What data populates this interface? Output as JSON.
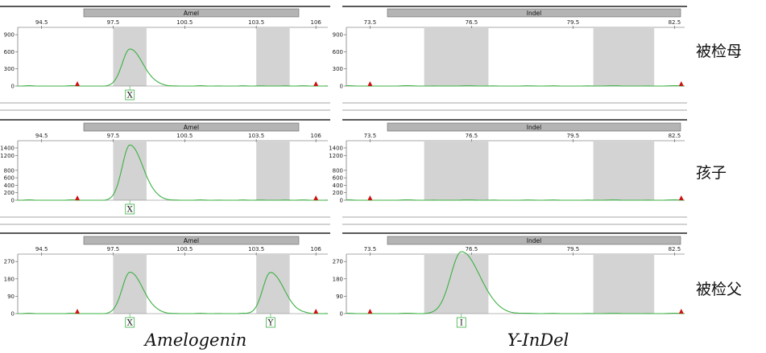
{
  "row_labels": [
    "被检母",
    "孩子",
    "被检父"
  ],
  "captions": [
    "Amelogenin",
    "Y-InDel"
  ],
  "colors": {
    "trace": "#3cb043",
    "bin": "#d3d3d3",
    "marker_bar": "#b4b4b4",
    "peak_marker": "#cc1111"
  },
  "chart_data": [
    {
      "type": "line",
      "panel": "Amelogenin / 被检母",
      "title": "Amel",
      "xlim": [
        93.5,
        106.5
      ],
      "x_ticks": [
        "94.5",
        "97.5",
        "100.5",
        "103.5",
        "106"
      ],
      "ylim": [
        0,
        1000
      ],
      "y_ticks": [
        "0",
        "300",
        "600",
        "900"
      ],
      "bins": [
        [
          97.5,
          98.9
        ],
        [
          103.5,
          104.9
        ]
      ],
      "peaks": [
        {
          "x": 98.2,
          "height": 650
        }
      ],
      "ladder_markers": [
        96.0,
        106.0
      ],
      "allele_labels": [
        {
          "x": 98.2,
          "label": "X"
        }
      ]
    },
    {
      "type": "line",
      "panel": "Y-InDel / 被检母",
      "title": "Indel",
      "xlim": [
        72.8,
        82.8
      ],
      "x_ticks": [
        "73.5",
        "76.5",
        "79.5",
        "82.5"
      ],
      "ylim": [
        0,
        1000
      ],
      "y_ticks": [
        "0",
        "300",
        "600",
        "900"
      ],
      "bins": [
        [
          75.1,
          77.0
        ],
        [
          80.1,
          81.9
        ]
      ],
      "peaks": [],
      "ladder_markers": [
        73.5,
        82.7
      ],
      "allele_labels": []
    },
    {
      "type": "line",
      "panel": "Amelogenin / 孩子",
      "title": "Amel",
      "xlim": [
        93.5,
        106.5
      ],
      "x_ticks": [
        "94.5",
        "97.5",
        "100.5",
        "103.5",
        "106"
      ],
      "ylim": [
        0,
        1550
      ],
      "y_ticks": [
        "0",
        "200",
        "400",
        "600",
        "800",
        "1200",
        "1400"
      ],
      "bins": [
        [
          97.5,
          98.9
        ],
        [
          103.5,
          104.9
        ]
      ],
      "peaks": [
        {
          "x": 98.2,
          "height": 1480
        }
      ],
      "ladder_markers": [
        96.0,
        106.0
      ],
      "allele_labels": [
        {
          "x": 98.2,
          "label": "X"
        }
      ]
    },
    {
      "type": "line",
      "panel": "Y-InDel / 孩子",
      "title": "Indel",
      "xlim": [
        72.8,
        82.8
      ],
      "x_ticks": [
        "73.5",
        "76.5",
        "79.5",
        "82.5"
      ],
      "ylim": [
        0,
        1550
      ],
      "y_ticks": [
        "0",
        "200",
        "400",
        "600",
        "800",
        "1200",
        "1400"
      ],
      "bins": [
        [
          75.1,
          77.0
        ],
        [
          80.1,
          81.9
        ]
      ],
      "peaks": [],
      "ladder_markers": [
        73.5,
        82.7
      ],
      "allele_labels": []
    },
    {
      "type": "line",
      "panel": "Amelogenin / 被检父",
      "title": "Amel",
      "xlim": [
        93.5,
        106.5
      ],
      "x_ticks": [
        "94.5",
        "97.5",
        "100.5",
        "103.5",
        "106"
      ],
      "ylim": [
        0,
        300
      ],
      "y_ticks": [
        "0",
        "90",
        "180",
        "270"
      ],
      "bins": [
        [
          97.5,
          98.9
        ],
        [
          103.5,
          104.9
        ]
      ],
      "peaks": [
        {
          "x": 98.2,
          "height": 215
        },
        {
          "x": 104.1,
          "height": 215
        }
      ],
      "ladder_markers": [
        96.0,
        106.0
      ],
      "allele_labels": [
        {
          "x": 98.2,
          "label": "X"
        },
        {
          "x": 104.1,
          "label": "Y"
        }
      ]
    },
    {
      "type": "line",
      "panel": "Y-InDel / 被检父",
      "title": "Indel",
      "xlim": [
        72.8,
        82.8
      ],
      "x_ticks": [
        "73.5",
        "76.5",
        "79.5",
        "82.5"
      ],
      "ylim": [
        0,
        300
      ],
      "y_ticks": [
        "0",
        "90",
        "180",
        "270"
      ],
      "bins": [
        [
          75.1,
          77.0
        ],
        [
          80.1,
          81.9
        ]
      ],
      "peaks": [
        {
          "x": 76.2,
          "height": 320
        }
      ],
      "ladder_markers": [
        73.5,
        82.7
      ],
      "allele_labels": [
        {
          "x": 76.2,
          "label": "I"
        }
      ]
    }
  ]
}
